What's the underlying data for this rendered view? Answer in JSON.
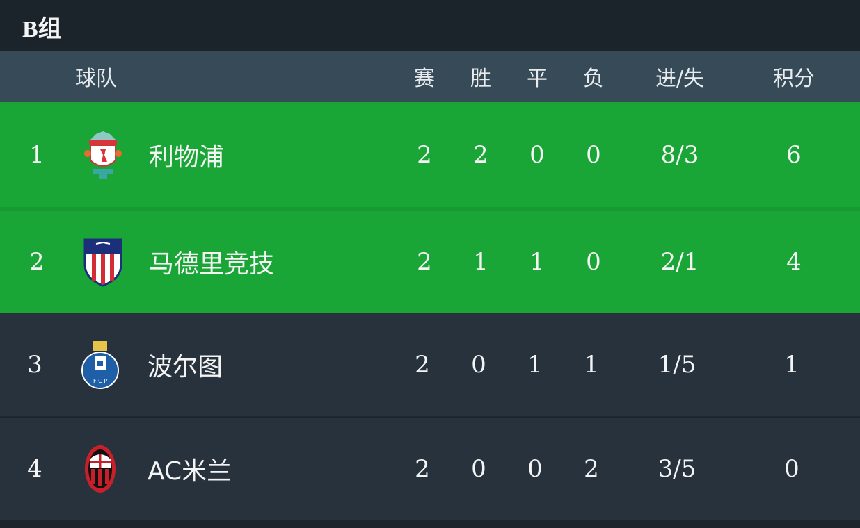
{
  "group_title": "B组",
  "columns": {
    "team": "球队",
    "played": "赛",
    "won": "胜",
    "drawn": "平",
    "lost": "负",
    "goals": "进/失",
    "points": "积分"
  },
  "colors": {
    "qualified_row": "#1aa637",
    "other_row": "#27323c",
    "header": "#374a58"
  },
  "rows": [
    {
      "rank": "1",
      "team": "利物浦",
      "logo": "liverpool-crest-icon",
      "played": "2",
      "won": "2",
      "drawn": "0",
      "lost": "0",
      "goals": "8/3",
      "points": "6"
    },
    {
      "rank": "2",
      "team": "马德里竞技",
      "logo": "atletico-madrid-crest-icon",
      "played": "2",
      "won": "1",
      "drawn": "1",
      "lost": "0",
      "goals": "2/1",
      "points": "4"
    },
    {
      "rank": "3",
      "team": "波尔图",
      "logo": "porto-crest-icon",
      "played": "2",
      "won": "0",
      "drawn": "1",
      "lost": "1",
      "goals": "1/5",
      "points": "1"
    },
    {
      "rank": "4",
      "team": "AC米兰",
      "logo": "ac-milan-crest-icon",
      "played": "2",
      "won": "0",
      "drawn": "0",
      "lost": "2",
      "goals": "3/5",
      "points": "0"
    }
  ]
}
